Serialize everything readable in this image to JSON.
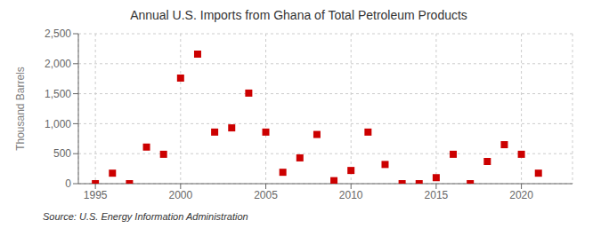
{
  "chart_data": {
    "type": "scatter",
    "title": "Annual U.S. Imports from Ghana of Total Petroleum Products",
    "ylabel": "Thousand Barrels",
    "annotations": [
      "Source: U.S. Energy Information Administration"
    ],
    "x": [
      1995,
      1996,
      1997,
      1998,
      1999,
      2000,
      2001,
      2002,
      2003,
      2004,
      2005,
      2006,
      2007,
      2008,
      2009,
      2010,
      2011,
      2012,
      2013,
      2014,
      2015,
      2016,
      2017,
      2018,
      2019,
      2020,
      2021
    ],
    "values": [
      0,
      175,
      0,
      610,
      490,
      1760,
      2160,
      860,
      930,
      1510,
      860,
      190,
      430,
      820,
      50,
      220,
      860,
      320,
      0,
      0,
      100,
      490,
      0,
      370,
      650,
      490,
      175
    ],
    "color": "#cc0000",
    "marker": "square",
    "xlim": [
      1994,
      2023
    ],
    "xticks": [
      1995,
      2000,
      2005,
      2010,
      2015,
      2020
    ],
    "ylim": [
      0,
      2500
    ],
    "yticks": [
      0,
      500,
      {
        "value": 1000,
        "label": "1,000"
      },
      {
        "value": 1500,
        "label": "1,500"
      },
      {
        "value": 2000,
        "label": "2,000"
      },
      {
        "value": 2500,
        "label": "2,500"
      }
    ],
    "grid": true
  }
}
